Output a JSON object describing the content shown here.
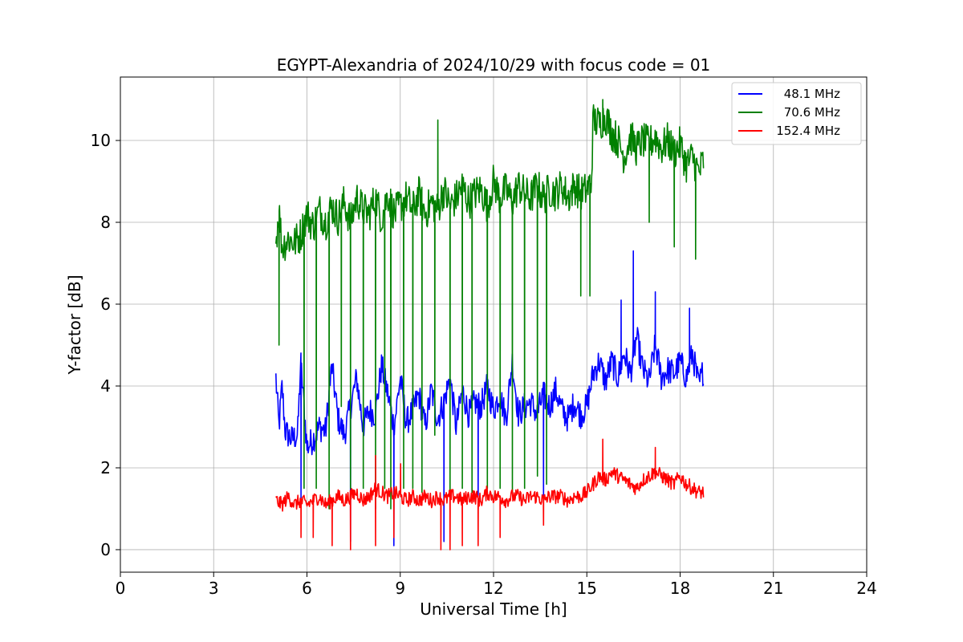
{
  "chart_data": {
    "type": "line",
    "title": "EGYPT-Alexandria of 2024/10/29 with focus code = 01",
    "xlabel": "Universal Time [h]",
    "ylabel": "Y-factor [dB]",
    "xlim": [
      0,
      24
    ],
    "ylim": [
      -0.55,
      11.55
    ],
    "x_ticks": [
      0,
      3,
      6,
      9,
      12,
      15,
      18,
      21,
      24
    ],
    "y_ticks": [
      0,
      2,
      4,
      6,
      8,
      10
    ],
    "grid": true,
    "legend_position": "top-right",
    "series": [
      {
        "name": "48.1 MHz",
        "color": "#0000ff",
        "x": [
          5.0,
          5.1,
          5.2,
          5.3,
          5.5,
          5.7,
          5.8,
          6.0,
          6.2,
          6.4,
          6.6,
          6.8,
          7.0,
          7.2,
          7.4,
          7.6,
          7.8,
          8.0,
          8.2,
          8.4,
          8.6,
          8.8,
          9.0,
          9.2,
          9.4,
          9.6,
          9.8,
          10.0,
          10.2,
          10.4,
          10.6,
          10.8,
          11.0,
          11.2,
          11.4,
          11.6,
          11.8,
          12.0,
          12.2,
          12.4,
          12.6,
          12.8,
          13.0,
          13.2,
          13.4,
          13.6,
          13.8,
          14.0,
          14.2,
          14.4,
          14.6,
          14.8,
          15.0,
          15.2,
          15.4,
          15.6,
          15.8,
          16.0,
          16.2,
          16.4,
          16.6,
          16.8,
          17.0,
          17.2,
          17.4,
          17.6,
          17.8,
          18.0,
          18.2,
          18.4,
          18.6,
          18.75
        ],
        "values": [
          4.2,
          3.0,
          4.0,
          2.9,
          2.7,
          2.8,
          4.6,
          2.5,
          2.7,
          3.0,
          2.9,
          4.5,
          3.2,
          2.8,
          3.5,
          4.2,
          3.0,
          3.4,
          3.3,
          4.5,
          3.8,
          3.0,
          4.2,
          3.1,
          3.4,
          3.8,
          3.0,
          3.9,
          3.2,
          3.6,
          4.2,
          3.0,
          3.9,
          3.3,
          3.6,
          3.5,
          4.0,
          3.4,
          3.8,
          3.2,
          4.6,
          3.3,
          3.5,
          3.6,
          3.3,
          3.8,
          3.5,
          3.9,
          3.4,
          3.2,
          3.6,
          3.3,
          3.5,
          4.3,
          4.6,
          4.1,
          4.6,
          4.2,
          4.8,
          4.3,
          5.2,
          4.4,
          4.1,
          5.0,
          4.2,
          4.4,
          4.3,
          4.6,
          4.2,
          4.8,
          4.0,
          4.4
        ],
        "dips": [
          [
            5.8,
            1.2
          ],
          [
            7.4,
            0.2
          ],
          [
            8.8,
            0.1
          ],
          [
            10.4,
            0.2
          ],
          [
            11.5,
            1.0
          ],
          [
            13.6,
            1.2
          ]
        ],
        "spikes": [
          [
            16.5,
            7.3
          ],
          [
            17.2,
            6.3
          ],
          [
            16.1,
            6.1
          ],
          [
            18.3,
            5.9
          ]
        ]
      },
      {
        "name": "70.6 MHz",
        "color": "#008000",
        "x": [
          5.0,
          5.1,
          5.2,
          5.4,
          5.6,
          5.8,
          6.0,
          6.2,
          6.4,
          6.6,
          6.8,
          7.0,
          7.2,
          7.4,
          7.6,
          7.8,
          8.0,
          8.2,
          8.4,
          8.6,
          8.8,
          9.0,
          9.2,
          9.4,
          9.6,
          9.8,
          10.0,
          10.2,
          10.4,
          10.6,
          10.8,
          11.0,
          11.2,
          11.4,
          11.6,
          11.8,
          12.0,
          12.2,
          12.4,
          12.6,
          12.8,
          13.0,
          13.2,
          13.4,
          13.6,
          13.8,
          14.0,
          14.2,
          14.4,
          14.6,
          14.8,
          15.0,
          15.15,
          15.2,
          15.4,
          15.6,
          15.8,
          16.0,
          16.2,
          16.4,
          16.6,
          16.8,
          17.0,
          17.2,
          17.4,
          17.6,
          17.8,
          18.0,
          18.2,
          18.4,
          18.6,
          18.75
        ],
        "values": [
          7.5,
          8.3,
          7.4,
          7.6,
          7.5,
          7.7,
          8.2,
          7.9,
          8.3,
          8.0,
          8.4,
          8.1,
          8.5,
          8.0,
          8.6,
          8.3,
          8.2,
          8.6,
          8.1,
          8.7,
          8.2,
          8.4,
          8.6,
          8.3,
          8.7,
          8.2,
          8.5,
          8.3,
          8.8,
          8.4,
          8.6,
          8.9,
          8.5,
          8.7,
          8.8,
          8.4,
          9.0,
          8.6,
          8.8,
          8.5,
          8.9,
          8.7,
          8.6,
          8.9,
          8.6,
          8.8,
          8.7,
          8.9,
          8.6,
          8.9,
          8.7,
          8.8,
          9.0,
          10.5,
          10.4,
          10.6,
          10.2,
          10.0,
          9.6,
          10.1,
          9.8,
          10.0,
          9.9,
          10.1,
          9.8,
          10.0,
          9.7,
          9.9,
          9.4,
          9.6,
          9.2,
          9.5
        ],
        "dips": [
          [
            5.1,
            5.0
          ],
          [
            5.9,
            1.5
          ],
          [
            6.3,
            1.5
          ],
          [
            6.7,
            1.0
          ],
          [
            7.1,
            3.5
          ],
          [
            7.4,
            1.5
          ],
          [
            7.8,
            1.5
          ],
          [
            8.2,
            1.0
          ],
          [
            8.5,
            1.5
          ],
          [
            8.7,
            1.0
          ],
          [
            9.1,
            1.5
          ],
          [
            9.4,
            1.5
          ],
          [
            9.7,
            1.4
          ],
          [
            10.1,
            2.8
          ],
          [
            10.6,
            1.4
          ],
          [
            11.0,
            1.5
          ],
          [
            11.3,
            1.4
          ],
          [
            11.8,
            1.5
          ],
          [
            12.2,
            1.5
          ],
          [
            12.6,
            1.4
          ],
          [
            13.0,
            1.5
          ],
          [
            13.4,
            1.8
          ],
          [
            13.7,
            1.6
          ],
          [
            14.8,
            6.2
          ],
          [
            15.1,
            6.2
          ],
          [
            17.0,
            8.0
          ],
          [
            17.8,
            7.4
          ],
          [
            18.5,
            7.1
          ]
        ],
        "spikes": [
          [
            10.2,
            10.5
          ],
          [
            15.5,
            11.0
          ]
        ]
      },
      {
        "name": "152.4 MHz",
        "color": "#ff0000",
        "x": [
          5.0,
          5.2,
          5.4,
          5.6,
          5.8,
          6.0,
          6.2,
          6.4,
          6.6,
          6.8,
          7.0,
          7.2,
          7.4,
          7.6,
          7.8,
          8.0,
          8.2,
          8.4,
          8.6,
          8.8,
          9.0,
          9.2,
          9.4,
          9.6,
          9.8,
          10.0,
          10.2,
          10.4,
          10.6,
          10.8,
          11.0,
          11.2,
          11.4,
          11.6,
          11.8,
          12.0,
          12.2,
          12.4,
          12.6,
          12.8,
          13.0,
          13.2,
          13.4,
          13.6,
          13.8,
          14.0,
          14.2,
          14.4,
          14.6,
          14.8,
          15.0,
          15.2,
          15.4,
          15.6,
          15.8,
          16.0,
          16.2,
          16.4,
          16.6,
          16.8,
          17.0,
          17.2,
          17.4,
          17.6,
          17.8,
          18.0,
          18.2,
          18.4,
          18.6,
          18.75
        ],
        "values": [
          1.2,
          1.1,
          1.3,
          1.1,
          1.2,
          1.1,
          1.2,
          1.3,
          1.1,
          1.2,
          1.3,
          1.2,
          1.3,
          1.4,
          1.2,
          1.3,
          1.5,
          1.4,
          1.3,
          1.4,
          1.3,
          1.2,
          1.3,
          1.2,
          1.3,
          1.2,
          1.3,
          1.2,
          1.3,
          1.3,
          1.2,
          1.3,
          1.3,
          1.2,
          1.4,
          1.3,
          1.3,
          1.2,
          1.3,
          1.3,
          1.2,
          1.3,
          1.3,
          1.2,
          1.3,
          1.3,
          1.3,
          1.2,
          1.3,
          1.3,
          1.4,
          1.6,
          1.8,
          1.7,
          1.9,
          1.8,
          1.7,
          1.6,
          1.5,
          1.7,
          1.8,
          1.9,
          1.8,
          1.7,
          1.6,
          1.8,
          1.6,
          1.5,
          1.4,
          1.4
        ],
        "dips": [
          [
            5.8,
            0.3
          ],
          [
            6.2,
            0.3
          ],
          [
            6.8,
            0.1
          ],
          [
            7.4,
            0.0
          ],
          [
            8.2,
            0.1
          ],
          [
            8.8,
            0.3
          ],
          [
            10.3,
            0.0
          ],
          [
            10.6,
            0.0
          ],
          [
            11.0,
            0.1
          ],
          [
            11.5,
            0.1
          ],
          [
            12.2,
            0.3
          ],
          [
            13.6,
            0.6
          ]
        ],
        "spikes": [
          [
            15.5,
            2.7
          ],
          [
            17.2,
            2.5
          ],
          [
            8.2,
            2.3
          ],
          [
            9.0,
            2.1
          ]
        ]
      }
    ]
  }
}
